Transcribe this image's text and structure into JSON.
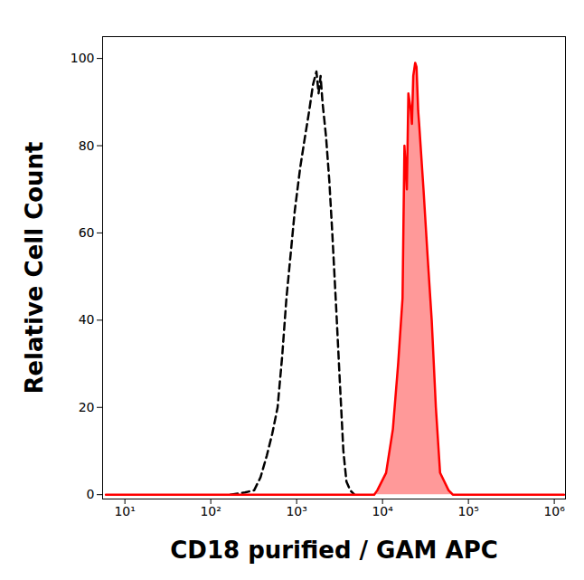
{
  "chart_data": {
    "type": "line",
    "x_label": "CD18 purified / GAM APC",
    "y_label": "Relative Cell Count",
    "log": "x",
    "grid": false,
    "xlim": [
      5.5,
      1350000
    ],
    "ylim": [
      -1,
      105
    ],
    "xticks": [
      {
        "value": 10,
        "label": "10¹"
      },
      {
        "value": 100,
        "label": "10²"
      },
      {
        "value": 1000,
        "label": "10³"
      },
      {
        "value": 10000,
        "label": "10⁴"
      },
      {
        "value": 100000,
        "label": "10⁵"
      },
      {
        "value": 1000000,
        "label": "10⁶"
      }
    ],
    "yticks": [
      0,
      20,
      40,
      60,
      80,
      100
    ],
    "series": [
      {
        "type": "line",
        "color": "#000000",
        "line_style": "dashed",
        "x": [
          170,
          250,
          320,
          380,
          450,
          520,
          600,
          680,
          760,
          850,
          950,
          1100,
          1250,
          1400,
          1550,
          1700,
          1800,
          1900,
          2000,
          2200,
          2400,
          2600,
          2900,
          3200,
          3500,
          3800,
          4200,
          4700
        ],
        "values": [
          0,
          0.5,
          1,
          4,
          9,
          14,
          20,
          32,
          45,
          55,
          65,
          75,
          82,
          88,
          94,
          97,
          92,
          96,
          90,
          82,
          72,
          60,
          42,
          25,
          10,
          3,
          1,
          0
        ]
      },
      {
        "type": "area",
        "color": "#ff0000",
        "line_style": "solid",
        "x": [
          6,
          8000,
          8700,
          11000,
          13200,
          15200,
          17100,
          18000,
          19200,
          20000,
          21400,
          22000,
          22800,
          24000,
          24900,
          26000,
          26700,
          30000,
          33400,
          37400,
          41800,
          46800,
          58800,
          65800,
          1300000
        ],
        "values": [
          0,
          0,
          1,
          5,
          15,
          30,
          45,
          80,
          70,
          92,
          88,
          85,
          96,
          99,
          98,
          88,
          85,
          70,
          55,
          40,
          20,
          5,
          1,
          0,
          0
        ]
      }
    ]
  }
}
